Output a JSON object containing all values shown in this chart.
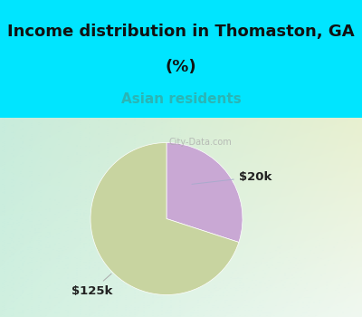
{
  "title_line1": "Income distribution in Thomaston, GA",
  "title_line2": "(%)",
  "subtitle": "Asian residents",
  "slices": [
    0.3,
    0.7
  ],
  "labels": [
    "$20k",
    "$125k"
  ],
  "colors": [
    "#c9a8d4",
    "#c8d4a0"
  ],
  "start_angle": 90,
  "title_fontsize": 13,
  "subtitle_fontsize": 11,
  "subtitle_color": "#2ab5b5",
  "title_color": "#111111",
  "bg_top_color": "#00e5ff",
  "label_fontsize": 9.5,
  "label_color": "#222222",
  "watermark": "City-Data.com"
}
